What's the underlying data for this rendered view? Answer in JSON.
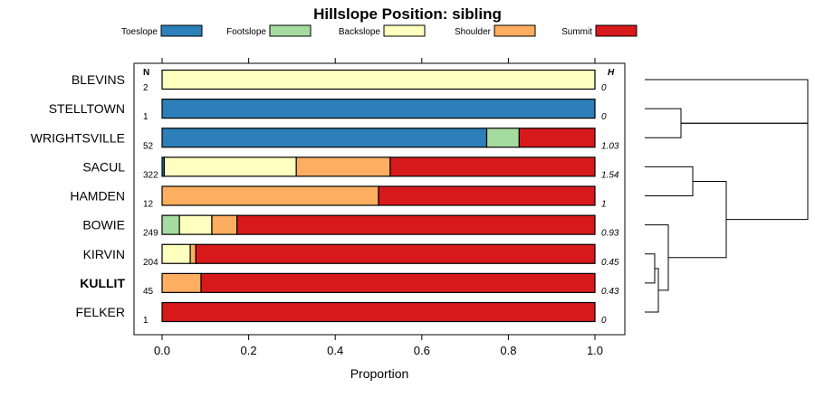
{
  "chart_data": {
    "type": "bar",
    "orientation": "horizontal-stacked",
    "title": "Hillslope Position: sibling",
    "xlabel": "Proportion",
    "xlim": [
      0,
      1
    ],
    "xticks": [
      "0.0",
      "0.2",
      "0.4",
      "0.6",
      "0.8",
      "1.0"
    ],
    "legend_placement": "top",
    "n_header": "N",
    "h_header": "H",
    "categories": [
      "BLEVINS",
      "STELLTOWN",
      "WRIGHTSVILLE",
      "SACUL",
      "HAMDEN",
      "BOWIE",
      "KIRVIN",
      "KULLIT",
      "FELKER"
    ],
    "highlighted_category": "KULLIT",
    "n": [
      "2",
      "1",
      "52",
      "322",
      "12",
      "249",
      "204",
      "45",
      "1"
    ],
    "h": [
      "0",
      "0",
      "1.03",
      "1.54",
      "1",
      "0.93",
      "0.45",
      "0.43",
      "0"
    ],
    "series": [
      {
        "name": "Toeslope",
        "color": "#2c7fb8",
        "values": [
          0,
          1,
          0.75,
          0.005,
          0,
          0,
          0,
          0,
          0
        ]
      },
      {
        "name": "Footslope",
        "color": "#a6dba0",
        "values": [
          0,
          0,
          0.075,
          0,
          0,
          0.04,
          0,
          0,
          0
        ]
      },
      {
        "name": "Backslope",
        "color": "#ffffbf",
        "values": [
          1,
          0,
          0,
          0.305,
          0,
          0.075,
          0.065,
          0,
          0
        ]
      },
      {
        "name": "Shoulder",
        "color": "#fdae61",
        "values": [
          0,
          0,
          0,
          0.217,
          0.5,
          0.058,
          0.013,
          0.09,
          0
        ]
      },
      {
        "name": "Summit",
        "color": "#d7191c",
        "values": [
          0,
          0,
          0.175,
          0.473,
          0.5,
          0.827,
          0.922,
          0.91,
          1
        ]
      }
    ],
    "dendrogram": "right"
  }
}
